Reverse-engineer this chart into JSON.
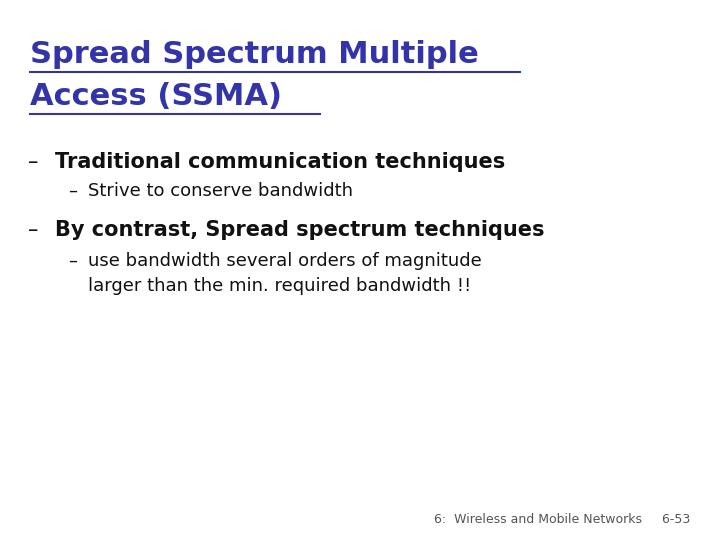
{
  "title_line1": "Spread Spectrum Multiple",
  "title_line2": "Access (SSMA)",
  "title_color": "#3333aa",
  "title_fontsize": 22,
  "background_color": "#ffffff",
  "bullet1": "Traditional communication techniques",
  "bullet1_fontsize": 15,
  "bullet1_color": "#111111",
  "sub_bullet1": "Strive to conserve bandwidth",
  "sub_bullet1_fontsize": 13,
  "sub_bullet1_color": "#111111",
  "bullet2": "By contrast, Spread spectrum techniques",
  "bullet2_fontsize": 15,
  "bullet2_color": "#111111",
  "sub_bullet2_line1": "use bandwidth several orders of magnitude",
  "sub_bullet2_line2": "larger than the min. required bandwidth !!",
  "sub_bullet2_fontsize": 13,
  "sub_bullet2_color": "#111111",
  "footer_text": "6:  Wireless and Mobile Networks     6-53",
  "footer_fontsize": 9,
  "footer_color": "#555555"
}
